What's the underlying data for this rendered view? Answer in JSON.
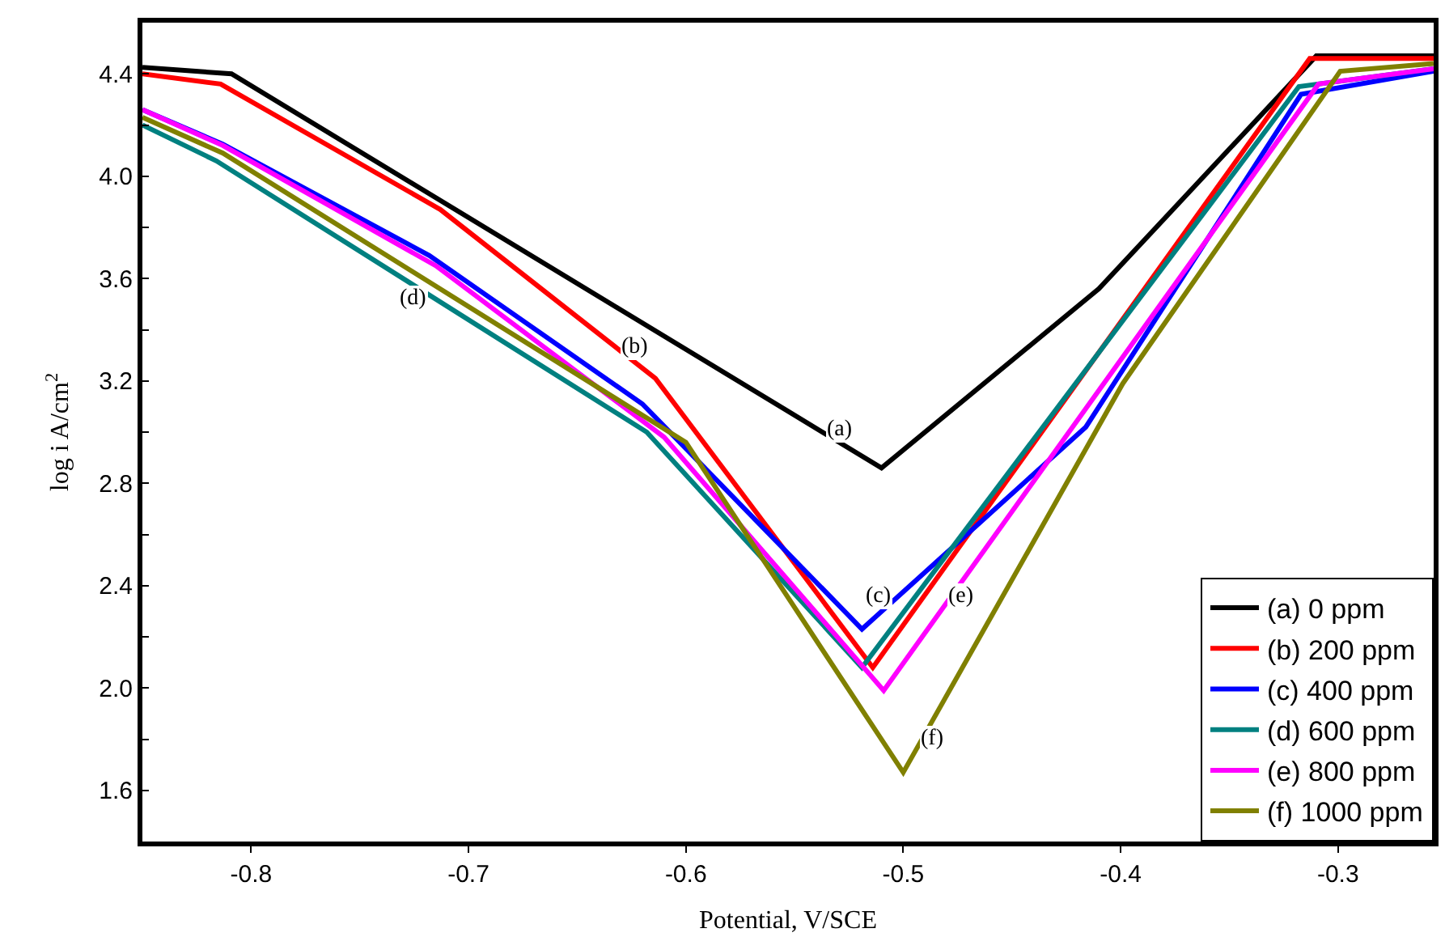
{
  "chart_data": {
    "type": "line",
    "xlabel": "Potential, V/SCE",
    "ylabel": "log i A/cm$^{2}$",
    "xlim": [
      -0.85,
      -0.256
    ],
    "ylim": [
      1.4,
      4.6
    ],
    "xticks": [
      -0.8,
      -0.7,
      -0.6,
      -0.5,
      -0.4,
      -0.3
    ],
    "yticks": [
      1.6,
      {
        "value": 1.8,
        "label": null
      },
      {
        "value": 2.0,
        "label": "2.0"
      },
      {
        "value": 2.2,
        "label": null
      },
      2.4,
      {
        "value": 2.6,
        "label": null
      },
      2.8,
      {
        "value": 3.0,
        "label": null
      },
      3.2,
      {
        "value": 3.4,
        "label": null
      },
      3.6,
      {
        "value": 3.8,
        "label": null
      },
      {
        "value": 4.0,
        "label": "4.0"
      },
      {
        "value": 4.2,
        "label": null
      },
      4.4
    ],
    "legend": "bottom right",
    "marker": "none",
    "line_style": "solid",
    "series": [
      {
        "name": "(a) 0 ppm",
        "color": "#000000",
        "x": [
          -0.85,
          -0.809,
          -0.51,
          -0.41,
          -0.31,
          -0.256
        ],
        "values": [
          4.425,
          4.4,
          2.86,
          3.56,
          4.47,
          4.47
        ]
      },
      {
        "name": "(b) 200 ppm",
        "color": "#ff0000",
        "x": [
          -0.85,
          -0.814,
          -0.713,
          -0.614,
          -0.514,
          -0.313,
          -0.256
        ],
        "values": [
          4.4,
          4.36,
          3.87,
          3.21,
          2.08,
          4.46,
          4.46
        ]
      },
      {
        "name": "(c) 400 ppm",
        "color": "#0000ff",
        "x": [
          -0.85,
          -0.813,
          -0.718,
          -0.62,
          -0.519,
          -0.416,
          -0.317,
          -0.256
        ],
        "values": [
          4.26,
          4.125,
          3.69,
          3.11,
          2.23,
          3.02,
          4.32,
          4.41
        ]
      },
      {
        "name": "(d) 600 ppm",
        "color": "#008080",
        "x": [
          -0.85,
          -0.816,
          -0.618,
          -0.519,
          -0.318,
          -0.256
        ],
        "values": [
          4.2,
          4.06,
          3.0,
          2.08,
          4.35,
          4.42
        ]
      },
      {
        "name": "(e) 800 ppm",
        "color": "#ff00ff",
        "x": [
          -0.85,
          -0.813,
          -0.715,
          -0.61,
          -0.509,
          -0.309,
          -0.256
        ],
        "values": [
          4.26,
          4.12,
          3.65,
          2.98,
          1.99,
          4.36,
          4.42
        ]
      },
      {
        "name": "(f) 1000 ppm",
        "color": "#808000",
        "x": [
          -0.85,
          -0.813,
          -0.6,
          -0.5,
          -0.399,
          -0.299,
          -0.256
        ],
        "values": [
          4.23,
          4.09,
          2.96,
          1.67,
          3.19,
          4.41,
          4.44
        ]
      }
    ],
    "annotations": [
      {
        "text": "(a)",
        "x": -0.529,
        "y": 3.01
      },
      {
        "text": "(b)",
        "x": -0.623,
        "y": 3.33
      },
      {
        "text": "(c)",
        "x": -0.511,
        "y": 2.36
      },
      {
        "text": "(d)",
        "x": -0.725,
        "y": 3.52
      },
      {
        "text": "(e)",
        "x": -0.473,
        "y": 2.36
      },
      {
        "text": "(f)",
        "x": -0.487,
        "y": 1.8
      }
    ]
  }
}
